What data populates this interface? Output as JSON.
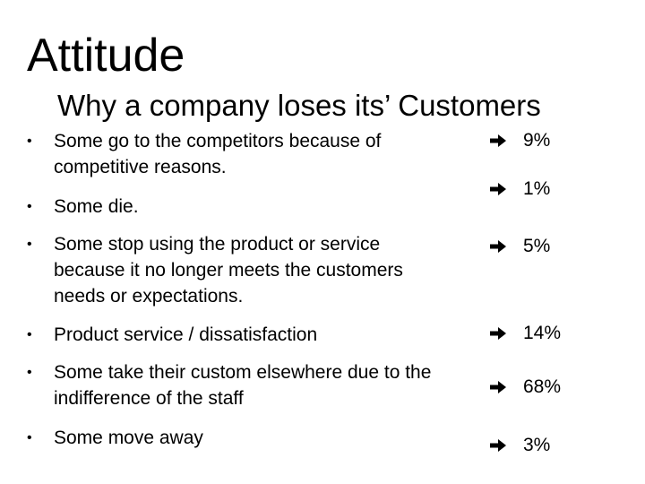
{
  "slide": {
    "title": "Attitude",
    "subtitle": "Why a company loses its’ Customers",
    "bullet_symbol": "•",
    "items": [
      {
        "text": "Some go to the competitors because of competitive reasons.",
        "value": "9%"
      },
      {
        "text": "Some die.",
        "value": "1%"
      },
      {
        "text": "Some stop using the product or service because it no longer meets the customers needs or expectations.",
        "value": "5%"
      },
      {
        "text": "Product service / dissatisfaction",
        "value": "14%"
      },
      {
        "text": "Some take their custom elsewhere due to the indifference of the staff",
        "value": "68%"
      },
      {
        "text": "Some move away",
        "value": "3%"
      }
    ],
    "arrow_icon": "right-arrow-icon",
    "text_color": "#000000",
    "background_color": "#ffffff"
  }
}
